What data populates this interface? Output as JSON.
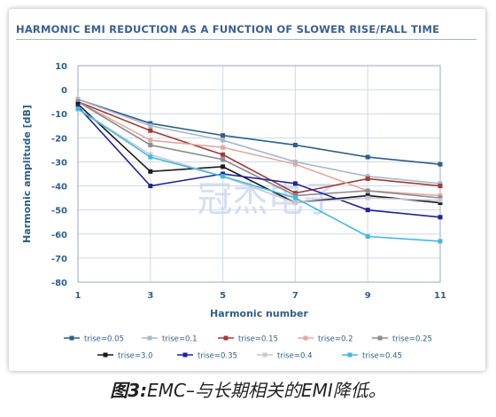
{
  "chart_data": {
    "type": "line",
    "title": "HARMONIC EMI REDUCTION AS A FUNCTION OF SLOWER RISE/FALL TIME",
    "xlabel": "Harmonic number",
    "ylabel": "Harmonic amplitude [dB]",
    "x": [
      1,
      3,
      5,
      7,
      9,
      11
    ],
    "xlim": [
      1,
      11
    ],
    "xticks": [
      "1",
      "3",
      "5",
      "7",
      "9",
      "11"
    ],
    "ylim": [
      -80,
      10
    ],
    "yticks": [
      "10",
      "0",
      "-10",
      "-20",
      "-30",
      "-40",
      "-50",
      "-60",
      "-70",
      "-80"
    ],
    "grid": true,
    "legend_position": "bottom",
    "series": [
      {
        "name": "trise=0.05",
        "color": "#2e5f8a",
        "marker": "square",
        "values": [
          -4,
          -14,
          -19,
          -23,
          -28,
          -31
        ]
      },
      {
        "name": "trise=0.1",
        "color": "#a8b8cc",
        "marker": "square",
        "values": [
          -4,
          -15,
          -21,
          -30,
          -36,
          -39
        ]
      },
      {
        "name": "trise=0.15",
        "color": "#a03a35",
        "marker": "square",
        "values": [
          -5,
          -17,
          -27,
          -43,
          -37,
          -40
        ]
      },
      {
        "name": "trise=0.2",
        "color": "#e0aaa0",
        "marker": "square",
        "values": [
          -5,
          -21,
          -24,
          -31,
          -42,
          -44
        ]
      },
      {
        "name": "trise=0.25",
        "color": "#8c8c8c",
        "marker": "square",
        "values": [
          -5,
          -23,
          -29,
          -44,
          -42,
          -45
        ]
      },
      {
        "name": "trise=3.0",
        "color": "#1a1a1a",
        "marker": "square",
        "values": [
          -6,
          -34,
          -32,
          -47,
          -44,
          -47
        ]
      },
      {
        "name": "trise=0.35",
        "color": "#22229a",
        "marker": "square",
        "values": [
          -7,
          -40,
          -35,
          -39,
          -50,
          -53
        ]
      },
      {
        "name": "trise=0.4",
        "color": "#c8c8d8",
        "marker": "square",
        "values": [
          -8,
          -27,
          -36,
          -47,
          -45,
          -46
        ]
      },
      {
        "name": "trise=0.45",
        "color": "#42b8e0",
        "marker": "square",
        "values": [
          -8,
          -28,
          -36,
          -45,
          -61,
          -63
        ]
      }
    ],
    "watermark": "冠杰电子"
  },
  "caption": {
    "prefix": "图3:",
    "text": "EMC–与长期相关的EMI降低。"
  }
}
